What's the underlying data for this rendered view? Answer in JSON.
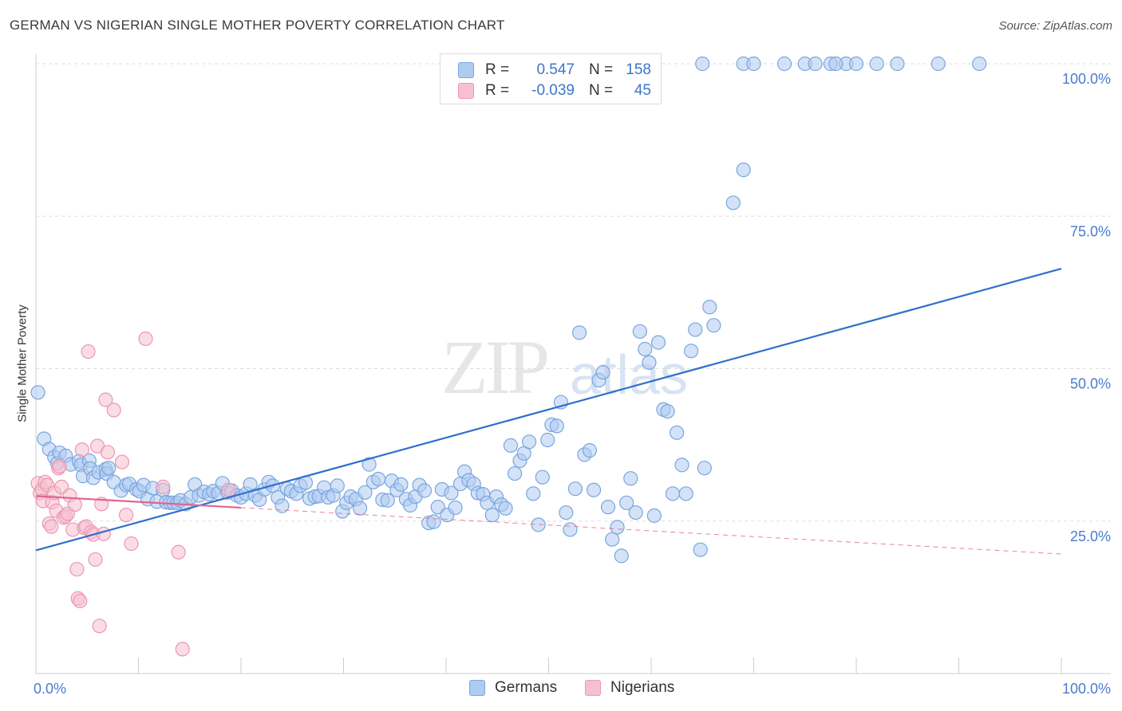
{
  "header": {
    "title": "GERMAN VS NIGERIAN SINGLE MOTHER POVERTY CORRELATION CHART",
    "source": "Source: ZipAtlas.com"
  },
  "watermark": {
    "part1": "ZIP",
    "part2": "atlas"
  },
  "legend": {
    "r_label": "R =",
    "n_label": "N =",
    "germans": {
      "r": "0.547",
      "n": "158"
    },
    "nigerians": {
      "r": "-0.039",
      "n": "45"
    }
  },
  "bottom_legend": {
    "germans": "Germans",
    "nigerians": "Nigerians"
  },
  "colors": {
    "germans_fill": "#aecbf0",
    "germans_stroke": "#7aa6df",
    "germans_line": "#2f6fcc",
    "nigerians_fill": "#f6c0d0",
    "nigerians_stroke": "#ec97b1",
    "nigerians_line": "#e2648f",
    "tick_label": "#4a7bd0"
  },
  "chart_data": {
    "type": "scatter",
    "title": "GERMAN VS NIGERIAN SINGLE MOTHER POVERTY CORRELATION CHART",
    "xlabel": "",
    "ylabel": "Single Mother Poverty",
    "xlim": [
      0,
      100
    ],
    "ylim": [
      0,
      100
    ],
    "x_tick_labels": [
      "0.0%",
      "100.0%"
    ],
    "y_ticks": [
      25,
      50,
      75,
      100
    ],
    "y_tick_labels": [
      "25.0%",
      "50.0%",
      "75.0%",
      "100.0%"
    ],
    "series": [
      {
        "name": "Germans",
        "trend": {
          "x0": 0,
          "y0": 20.2,
          "x1": 100,
          "y1": 66.4,
          "dashed_from": null
        },
        "points": [
          [
            0.2,
            46.1
          ],
          [
            0.8,
            38.5
          ],
          [
            1.3,
            36.8
          ],
          [
            1.8,
            35.5
          ],
          [
            2.1,
            34.5
          ],
          [
            2.3,
            36.2
          ],
          [
            2.9,
            35.7
          ],
          [
            3.4,
            34.3
          ],
          [
            4.2,
            34.8
          ],
          [
            4.4,
            34.2
          ],
          [
            4.6,
            32.4
          ],
          [
            5.2,
            34.9
          ],
          [
            5.3,
            33.6
          ],
          [
            5.6,
            32.1
          ],
          [
            6.1,
            33.0
          ],
          [
            6.8,
            33.5
          ],
          [
            6.9,
            32.8
          ],
          [
            7.1,
            33.7
          ],
          [
            7.6,
            31.4
          ],
          [
            8.3,
            30.0
          ],
          [
            8.8,
            30.9
          ],
          [
            9.1,
            31.1
          ],
          [
            9.8,
            30.2
          ],
          [
            10.1,
            29.9
          ],
          [
            10.5,
            30.9
          ],
          [
            10.9,
            28.6
          ],
          [
            11.4,
            30.4
          ],
          [
            11.8,
            28.2
          ],
          [
            12.4,
            30.1
          ],
          [
            12.7,
            28.1
          ],
          [
            13.1,
            28.0
          ],
          [
            13.4,
            28.0
          ],
          [
            13.8,
            28.0
          ],
          [
            14.1,
            28.4
          ],
          [
            14.6,
            27.8
          ],
          [
            15.1,
            28.9
          ],
          [
            15.5,
            31.0
          ],
          [
            15.9,
            29.2
          ],
          [
            16.4,
            29.8
          ],
          [
            16.9,
            29.4
          ],
          [
            17.3,
            29.9
          ],
          [
            17.8,
            29.6
          ],
          [
            18.2,
            31.2
          ],
          [
            18.7,
            29.7
          ],
          [
            19.1,
            30.0
          ],
          [
            19.6,
            29.2
          ],
          [
            20.0,
            28.9
          ],
          [
            20.5,
            29.5
          ],
          [
            20.9,
            31.0
          ],
          [
            21.4,
            29.2
          ],
          [
            21.8,
            28.5
          ],
          [
            22.3,
            30.2
          ],
          [
            22.7,
            31.4
          ],
          [
            23.1,
            30.8
          ],
          [
            23.6,
            28.9
          ],
          [
            24.0,
            27.5
          ],
          [
            24.5,
            30.3
          ],
          [
            24.9,
            29.9
          ],
          [
            25.4,
            29.5
          ],
          [
            25.8,
            30.8
          ],
          [
            26.3,
            31.3
          ],
          [
            26.7,
            28.7
          ],
          [
            27.2,
            29.0
          ],
          [
            27.6,
            29.1
          ],
          [
            28.1,
            30.5
          ],
          [
            28.5,
            28.9
          ],
          [
            29.0,
            29.2
          ],
          [
            29.4,
            30.8
          ],
          [
            29.9,
            26.6
          ],
          [
            30.3,
            28.0
          ],
          [
            30.7,
            29.0
          ],
          [
            31.2,
            28.6
          ],
          [
            31.6,
            27.1
          ],
          [
            32.1,
            29.7
          ],
          [
            32.5,
            34.3
          ],
          [
            32.9,
            31.4
          ],
          [
            33.4,
            31.9
          ],
          [
            33.8,
            28.5
          ],
          [
            34.3,
            28.4
          ],
          [
            34.7,
            31.6
          ],
          [
            35.2,
            30.1
          ],
          [
            35.6,
            31.0
          ],
          [
            36.1,
            28.6
          ],
          [
            36.5,
            27.6
          ],
          [
            37.0,
            29.0
          ],
          [
            37.4,
            30.9
          ],
          [
            37.9,
            30.0
          ],
          [
            38.3,
            24.7
          ],
          [
            38.8,
            24.9
          ],
          [
            39.2,
            27.3
          ],
          [
            39.6,
            30.2
          ],
          [
            40.1,
            26.0
          ],
          [
            40.5,
            29.6
          ],
          [
            40.9,
            27.2
          ],
          [
            41.4,
            31.1
          ],
          [
            41.8,
            33.1
          ],
          [
            42.2,
            31.7
          ],
          [
            42.7,
            31.1
          ],
          [
            43.1,
            29.6
          ],
          [
            43.6,
            29.4
          ],
          [
            44.0,
            28.0
          ],
          [
            44.5,
            26.0
          ],
          [
            44.9,
            29.0
          ],
          [
            45.4,
            27.7
          ],
          [
            45.8,
            27.1
          ],
          [
            46.3,
            37.4
          ],
          [
            46.7,
            32.8
          ],
          [
            47.2,
            34.9
          ],
          [
            47.6,
            36.1
          ],
          [
            48.1,
            38.0
          ],
          [
            48.5,
            29.5
          ],
          [
            49.0,
            24.4
          ],
          [
            49.4,
            32.2
          ],
          [
            49.9,
            38.3
          ],
          [
            50.3,
            40.8
          ],
          [
            50.8,
            40.6
          ],
          [
            51.2,
            44.5
          ],
          [
            51.7,
            26.4
          ],
          [
            52.1,
            23.6
          ],
          [
            52.6,
            30.3
          ],
          [
            53.0,
            55.9
          ],
          [
            53.5,
            35.9
          ],
          [
            54.0,
            36.6
          ],
          [
            54.4,
            30.1
          ],
          [
            54.9,
            48.1
          ],
          [
            55.3,
            49.4
          ],
          [
            55.8,
            27.3
          ],
          [
            56.2,
            22.0
          ],
          [
            56.7,
            24.0
          ],
          [
            57.1,
            19.3
          ],
          [
            57.6,
            28.0
          ],
          [
            58.0,
            32.0
          ],
          [
            58.5,
            26.4
          ],
          [
            58.9,
            56.1
          ],
          [
            59.4,
            53.2
          ],
          [
            59.8,
            51.0
          ],
          [
            60.3,
            25.9
          ],
          [
            60.7,
            54.3
          ],
          [
            61.2,
            43.3
          ],
          [
            61.6,
            43.0
          ],
          [
            62.1,
            29.5
          ],
          [
            62.5,
            39.5
          ],
          [
            63.0,
            34.2
          ],
          [
            63.4,
            29.5
          ],
          [
            63.9,
            52.9
          ],
          [
            64.3,
            56.4
          ],
          [
            64.8,
            20.3
          ],
          [
            65.2,
            33.7
          ],
          [
            65.7,
            60.1
          ],
          [
            66.1,
            57.1
          ],
          [
            69.0,
            82.6
          ],
          [
            68.0,
            77.2
          ],
          [
            65.0,
            100
          ],
          [
            69.0,
            100
          ],
          [
            70.0,
            100
          ],
          [
            73.0,
            100
          ],
          [
            75.0,
            100
          ],
          [
            77.5,
            100
          ],
          [
            79.0,
            100
          ],
          [
            80.0,
            100
          ],
          [
            82.0,
            100
          ],
          [
            84.0,
            100
          ],
          [
            88.0,
            100
          ],
          [
            92.0,
            100
          ],
          [
            76.0,
            100
          ],
          [
            78.0,
            100
          ]
        ]
      },
      {
        "name": "Nigerians",
        "trend": {
          "x0": 0,
          "y0": 29.1,
          "x1": 100,
          "y1": 19.6,
          "solid_to": 20
        },
        "points": [
          [
            0.2,
            31.2
          ],
          [
            0.4,
            29.6
          ],
          [
            0.6,
            30.2
          ],
          [
            0.7,
            28.3
          ],
          [
            0.9,
            31.4
          ],
          [
            1.1,
            30.9
          ],
          [
            1.3,
            24.6
          ],
          [
            1.5,
            24.1
          ],
          [
            1.6,
            28.1
          ],
          [
            1.8,
            29.6
          ],
          [
            2.0,
            26.7
          ],
          [
            2.2,
            33.7
          ],
          [
            2.3,
            34.0
          ],
          [
            2.5,
            30.6
          ],
          [
            2.7,
            25.6
          ],
          [
            2.9,
            25.8
          ],
          [
            3.1,
            26.2
          ],
          [
            3.3,
            29.2
          ],
          [
            3.6,
            23.6
          ],
          [
            3.8,
            27.7
          ],
          [
            4.0,
            17.1
          ],
          [
            4.1,
            12.3
          ],
          [
            4.3,
            11.9
          ],
          [
            4.5,
            36.7
          ],
          [
            4.7,
            23.9
          ],
          [
            4.9,
            24.1
          ],
          [
            5.1,
            52.8
          ],
          [
            5.4,
            23.2
          ],
          [
            5.6,
            22.8
          ],
          [
            5.8,
            18.7
          ],
          [
            6.0,
            37.3
          ],
          [
            6.2,
            7.8
          ],
          [
            6.4,
            27.8
          ],
          [
            6.6,
            22.9
          ],
          [
            6.8,
            44.9
          ],
          [
            7.0,
            36.3
          ],
          [
            7.6,
            43.2
          ],
          [
            8.4,
            34.7
          ],
          [
            8.8,
            26.0
          ],
          [
            9.3,
            21.3
          ],
          [
            10.7,
            54.9
          ],
          [
            13.9,
            19.9
          ],
          [
            14.3,
            4.0
          ],
          [
            18.8,
            30.1
          ],
          [
            12.4,
            30.6
          ]
        ]
      }
    ]
  }
}
